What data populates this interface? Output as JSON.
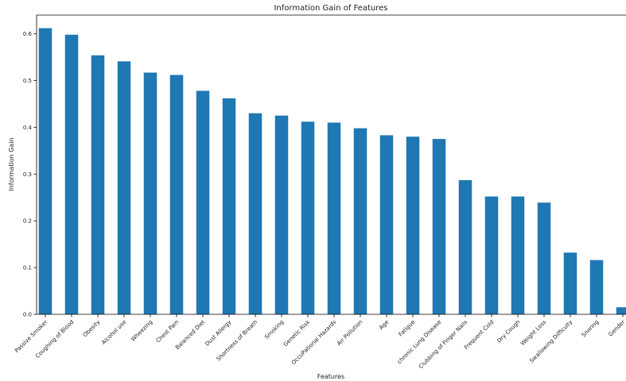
{
  "chart_data": {
    "type": "bar",
    "title": "Information Gain of Features",
    "xlabel": "Features",
    "ylabel": "Information Gain",
    "ylim": [
      0,
      0.64
    ],
    "yticks": [
      "0.0",
      "0.1",
      "0.2",
      "0.3",
      "0.4",
      "0.5",
      "0.6"
    ],
    "categories": [
      "Passive Smoker",
      "Coughing of Blood",
      "Obesity",
      "Alcohol use",
      "Wheezing",
      "Chest Pain",
      "Balanced Diet",
      "Dust Allergy",
      "Shortness of Breath",
      "Smoking",
      "Genetic Risk",
      "OccuPational Hazards",
      "Air Pollution",
      "Age",
      "Fatigue",
      "chronic Lung Disease",
      "Clubbing of Finger Nails",
      "Frequent Cold",
      "Dry Cough",
      "Weight Loss",
      "Swallowing Difficulty",
      "Snoring",
      "Gender"
    ],
    "values": [
      0.612,
      0.598,
      0.554,
      0.541,
      0.517,
      0.512,
      0.478,
      0.462,
      0.43,
      0.425,
      0.412,
      0.41,
      0.398,
      0.383,
      0.38,
      0.375,
      0.287,
      0.252,
      0.252,
      0.239,
      0.132,
      0.116,
      0.015
    ],
    "bar_color": "#1f77b4",
    "grid": false,
    "legend": "none"
  }
}
